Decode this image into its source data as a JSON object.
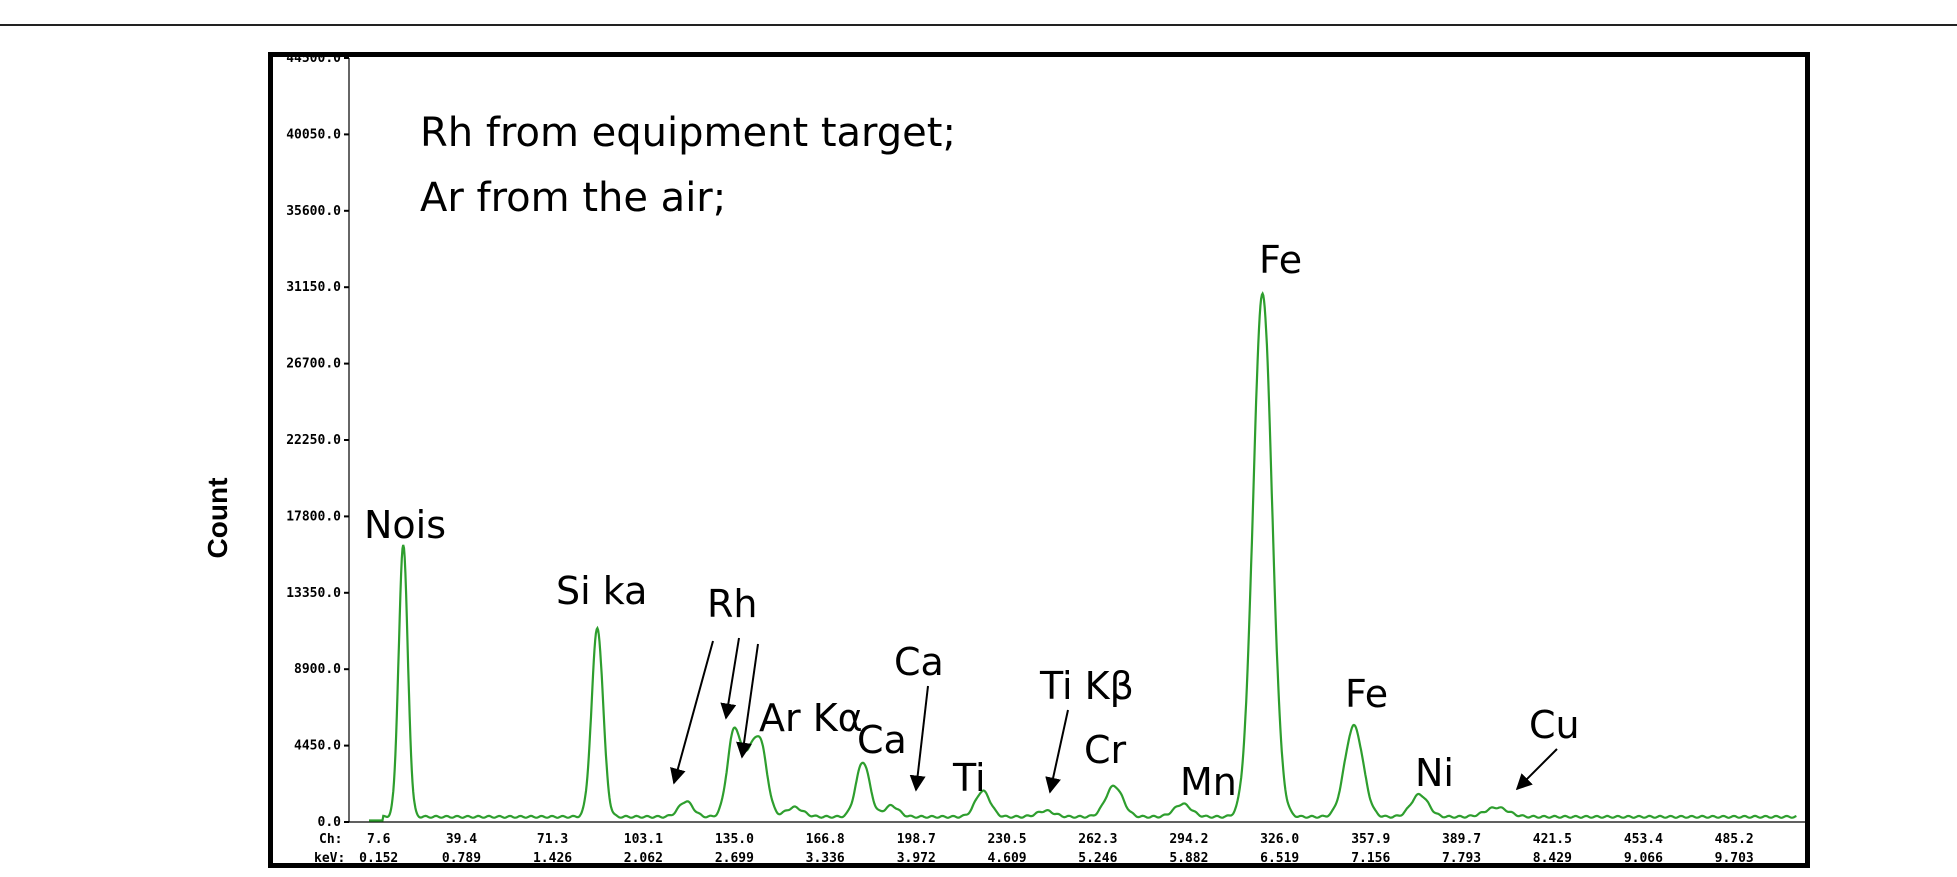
{
  "chart_data": {
    "type": "line",
    "ylabel": "Count",
    "ylim": [
      0,
      44500
    ],
    "xlim": [
      0,
      510
    ],
    "yticks": [
      "0.0",
      "4450.0",
      "8900.0",
      "13350.0",
      "17800.0",
      "22250.0",
      "26700.0",
      "31150.0",
      "35600.0",
      "40050.0",
      "44500.0"
    ],
    "ytick_values": [
      0,
      4450,
      8900,
      13350,
      17800,
      22250,
      26700,
      31150,
      35600,
      40050,
      44500
    ],
    "x_row1_prefix": "Ch:",
    "x_row2_prefix": "keV:",
    "xticks_ch": [
      "7.6",
      "39.4",
      "71.3",
      "103.1",
      "135.0",
      "166.8",
      "198.7",
      "230.5",
      "262.3",
      "294.2",
      "326.0",
      "357.9",
      "389.7",
      "421.5",
      "453.4",
      "485.2"
    ],
    "xticks_kev": [
      "0.152",
      "0.789",
      "1.426",
      "2.062",
      "2.699",
      "3.336",
      "3.972",
      "4.609",
      "5.246",
      "5.882",
      "6.519",
      "7.156",
      "7.793",
      "8.429",
      "9.066",
      "9.703"
    ],
    "xtick_values": [
      7.6,
      39.4,
      71.3,
      103.1,
      135.0,
      166.8,
      198.7,
      230.5,
      262.3,
      294.2,
      326.0,
      357.9,
      389.7,
      421.5,
      453.4,
      485.2
    ],
    "baseline": 300,
    "noise_level": 350,
    "peaks": [
      {
        "ch": 19,
        "height": 15800,
        "width": 1.6
      },
      {
        "ch": 87,
        "height": 11000,
        "width": 2.0
      },
      {
        "ch": 118,
        "height": 900,
        "width": 2.5
      },
      {
        "ch": 135,
        "height": 5100,
        "width": 2.4
      },
      {
        "ch": 140,
        "height": 2400,
        "width": 2.0
      },
      {
        "ch": 144,
        "height": 4300,
        "width": 2.4
      },
      {
        "ch": 156,
        "height": 550,
        "width": 3.0
      },
      {
        "ch": 180,
        "height": 3200,
        "width": 2.4
      },
      {
        "ch": 190,
        "height": 650,
        "width": 2.5
      },
      {
        "ch": 222,
        "height": 1500,
        "width": 2.6
      },
      {
        "ch": 244,
        "height": 350,
        "width": 3.0
      },
      {
        "ch": 268,
        "height": 1800,
        "width": 3.0
      },
      {
        "ch": 292,
        "height": 750,
        "width": 3.0
      },
      {
        "ch": 320,
        "height": 30500,
        "width": 3.3
      },
      {
        "ch": 352,
        "height": 5300,
        "width": 3.2
      },
      {
        "ch": 375,
        "height": 1300,
        "width": 3.0
      },
      {
        "ch": 402,
        "height": 550,
        "width": 4.0
      }
    ],
    "annotations": [
      "Nois",
      "Si ka",
      "Rh",
      "Ar Kα",
      "Ca",
      "Ca",
      "Ti",
      "Ti Kβ",
      "Cr",
      "Mn",
      "Fe",
      "Fe",
      "Ni",
      "Cu"
    ],
    "notes": [
      "Rh from equipment target;",
      "Ar from the air;"
    ],
    "line_color": "#2e9e2e",
    "grid": false
  }
}
